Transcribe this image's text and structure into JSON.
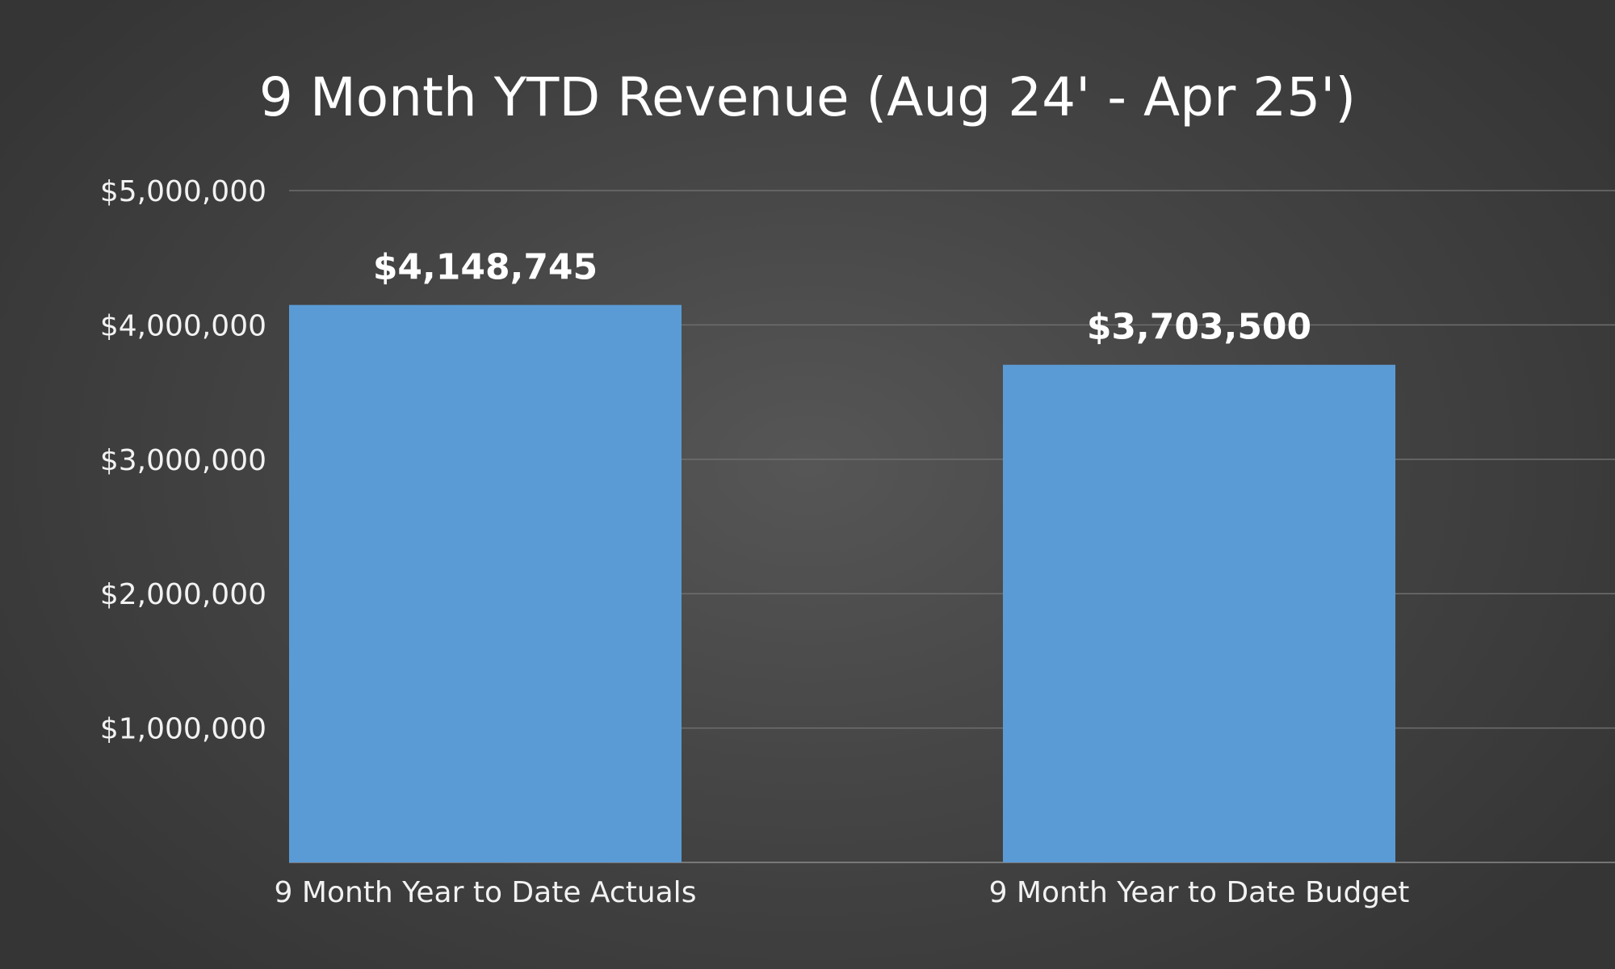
{
  "chart_data": {
    "type": "bar",
    "title": "9 Month YTD Revenue (Aug 24' - Apr 25')",
    "categories": [
      "9 Month Year to Date Actuals",
      "9 Month Year to Date Budget"
    ],
    "values": [
      4148745,
      3703500
    ],
    "value_labels": [
      "$4,148,745",
      "$3,703,500"
    ],
    "ylim": [
      0,
      5000000
    ],
    "y_ticks": [
      1000000,
      2000000,
      3000000,
      4000000,
      5000000
    ],
    "y_tick_labels": [
      "$1,000,000",
      "$2,000,000",
      "$3,000,000",
      "$4,000,000",
      "$5,000,000"
    ],
    "grid": true,
    "bar_color": "#5B9BD5",
    "legend": "none"
  }
}
